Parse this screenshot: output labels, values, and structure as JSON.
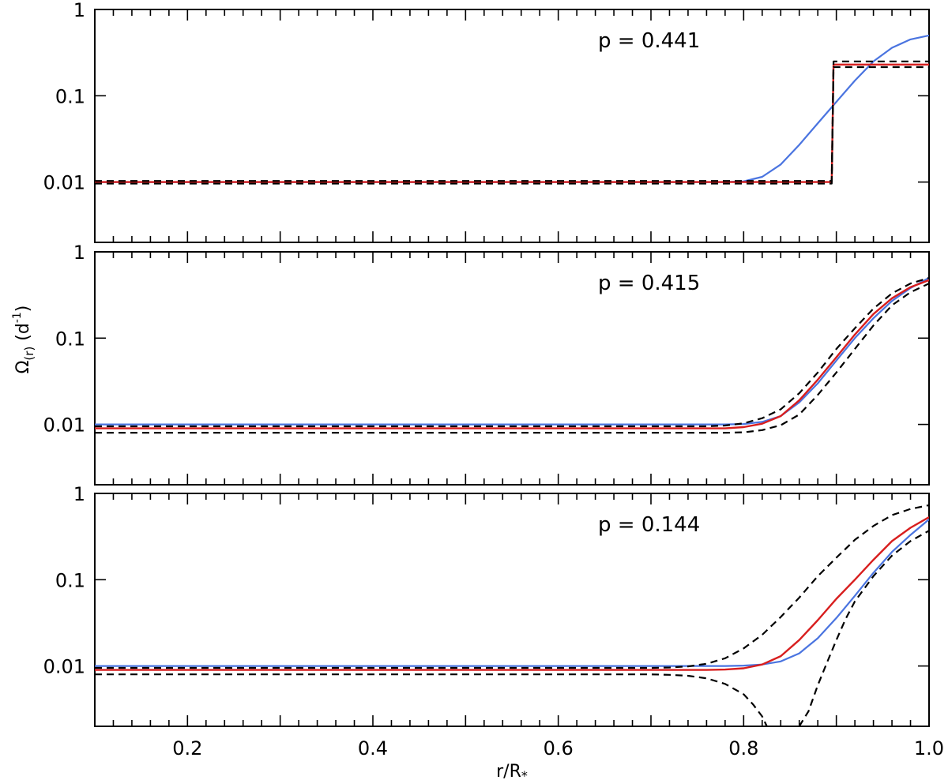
{
  "colors": {
    "blue": "#4a74e0",
    "red": "#d81e1e",
    "black": "#000000"
  },
  "chart_data": [
    {
      "type": "line",
      "annotation": "p = 0.441",
      "ylog": true,
      "ylim": [
        0.002,
        1
      ],
      "xlim": [
        0.1,
        1.0
      ],
      "series": [
        {
          "style": "blue-solid",
          "x": [
            0.1,
            0.78,
            0.8,
            0.82,
            0.84,
            0.86,
            0.88,
            0.9,
            0.92,
            0.94,
            0.96,
            0.98,
            1.0
          ],
          "y": [
            0.01,
            0.01,
            0.0102,
            0.0115,
            0.016,
            0.027,
            0.048,
            0.085,
            0.15,
            0.25,
            0.36,
            0.45,
            0.5
          ]
        },
        {
          "style": "red-solid",
          "x": [
            0.1,
            0.895,
            0.897,
            1.0
          ],
          "y": [
            0.01,
            0.01,
            0.23,
            0.23
          ]
        },
        {
          "style": "black-dashed",
          "x": [
            0.1,
            0.895,
            0.897,
            1.0
          ],
          "y": [
            0.0103,
            0.0103,
            0.25,
            0.25
          ]
        },
        {
          "style": "black-dashed",
          "x": [
            0.1,
            0.895,
            0.897,
            1.0
          ],
          "y": [
            0.0096,
            0.0096,
            0.215,
            0.215
          ]
        }
      ]
    },
    {
      "type": "line",
      "annotation": "p = 0.415",
      "ylog": true,
      "ylim": [
        0.002,
        1
      ],
      "xlim": [
        0.1,
        1.0
      ],
      "series": [
        {
          "style": "blue-solid",
          "x": [
            0.1,
            0.78,
            0.8,
            0.82,
            0.84,
            0.86,
            0.88,
            0.9,
            0.92,
            0.94,
            0.96,
            0.98,
            1.0
          ],
          "y": [
            0.01,
            0.01,
            0.0101,
            0.0107,
            0.0125,
            0.018,
            0.03,
            0.055,
            0.1,
            0.17,
            0.27,
            0.38,
            0.5
          ]
        },
        {
          "style": "red-solid",
          "x": [
            0.1,
            0.78,
            0.8,
            0.82,
            0.84,
            0.86,
            0.88,
            0.9,
            0.92,
            0.94,
            0.96,
            0.98,
            1.0
          ],
          "y": [
            0.009,
            0.009,
            0.0093,
            0.0102,
            0.0125,
            0.019,
            0.033,
            0.06,
            0.11,
            0.19,
            0.29,
            0.39,
            0.47
          ]
        },
        {
          "style": "black-dashed",
          "x": [
            0.1,
            0.76,
            0.78,
            0.8,
            0.82,
            0.84,
            0.86,
            0.88,
            0.9,
            0.92,
            0.94,
            0.96,
            0.98,
            1.0
          ],
          "y": [
            0.0095,
            0.0095,
            0.0097,
            0.0103,
            0.0118,
            0.015,
            0.023,
            0.04,
            0.075,
            0.13,
            0.22,
            0.33,
            0.43,
            0.5
          ]
        },
        {
          "style": "black-dashed",
          "x": [
            0.1,
            0.78,
            0.8,
            0.82,
            0.84,
            0.86,
            0.88,
            0.9,
            0.92,
            0.94,
            0.96,
            0.98,
            1.0
          ],
          "y": [
            0.008,
            0.008,
            0.0081,
            0.0086,
            0.0098,
            0.013,
            0.022,
            0.04,
            0.075,
            0.14,
            0.24,
            0.34,
            0.43
          ]
        }
      ]
    },
    {
      "type": "line",
      "annotation": "p = 0.144",
      "ylog": true,
      "ylim": [
        0.002,
        1
      ],
      "xlim": [
        0.1,
        1.0
      ],
      "series": [
        {
          "style": "blue-solid",
          "x": [
            0.1,
            0.78,
            0.8,
            0.82,
            0.84,
            0.86,
            0.88,
            0.9,
            0.92,
            0.94,
            0.96,
            0.98,
            1.0
          ],
          "y": [
            0.01,
            0.01,
            0.0101,
            0.0104,
            0.0113,
            0.014,
            0.021,
            0.036,
            0.065,
            0.12,
            0.21,
            0.33,
            0.5
          ]
        },
        {
          "style": "red-solid",
          "x": [
            0.1,
            0.76,
            0.78,
            0.8,
            0.82,
            0.84,
            0.86,
            0.88,
            0.9,
            0.92,
            0.94,
            0.96,
            0.98,
            1.0
          ],
          "y": [
            0.009,
            0.009,
            0.0091,
            0.0094,
            0.0104,
            0.013,
            0.02,
            0.034,
            0.06,
            0.1,
            0.17,
            0.28,
            0.4,
            0.53
          ]
        },
        {
          "style": "black-dashed",
          "x": [
            0.1,
            0.7,
            0.72,
            0.74,
            0.76,
            0.78,
            0.8,
            0.82,
            0.84,
            0.86,
            0.88,
            0.9,
            0.92,
            0.94,
            0.96,
            0.98,
            1.0
          ],
          "y": [
            0.0095,
            0.0095,
            0.0096,
            0.0099,
            0.0106,
            0.0123,
            0.016,
            0.023,
            0.037,
            0.062,
            0.11,
            0.18,
            0.29,
            0.42,
            0.56,
            0.66,
            0.73
          ]
        },
        {
          "style": "black-dashed",
          "x": [
            0.1,
            0.7,
            0.72,
            0.74,
            0.76,
            0.78,
            0.8,
            0.81,
            0.82,
            0.825
          ],
          "y": [
            0.008,
            0.008,
            0.0079,
            0.0077,
            0.0072,
            0.0062,
            0.0047,
            0.0036,
            0.0026,
            0.002
          ]
        },
        {
          "style": "black-dashed",
          "x": [
            0.86,
            0.87,
            0.88,
            0.89,
            0.9,
            0.91,
            0.92,
            0.94,
            0.96,
            0.98,
            1.0
          ],
          "y": [
            0.002,
            0.003,
            0.006,
            0.011,
            0.02,
            0.035,
            0.056,
            0.11,
            0.19,
            0.28,
            0.37
          ]
        }
      ]
    }
  ],
  "axes": {
    "x_ticks": [
      "0.2",
      "0.4",
      "0.6",
      "0.8",
      "1.0"
    ],
    "x_tick_values": [
      0.2,
      0.4,
      0.6,
      0.8,
      1.0
    ],
    "y_ticks": [
      "1",
      "0.1",
      "0.01"
    ],
    "y_tick_values": [
      1,
      0.1,
      0.01
    ],
    "xlabel": "r/R",
    "xlabel_sub": "*",
    "ylabel_main": "Ω",
    "ylabel_sub": "(r)",
    "ylabel_unit": " (d",
    "ylabel_sup": "-1",
    "ylabel_close": ")"
  }
}
